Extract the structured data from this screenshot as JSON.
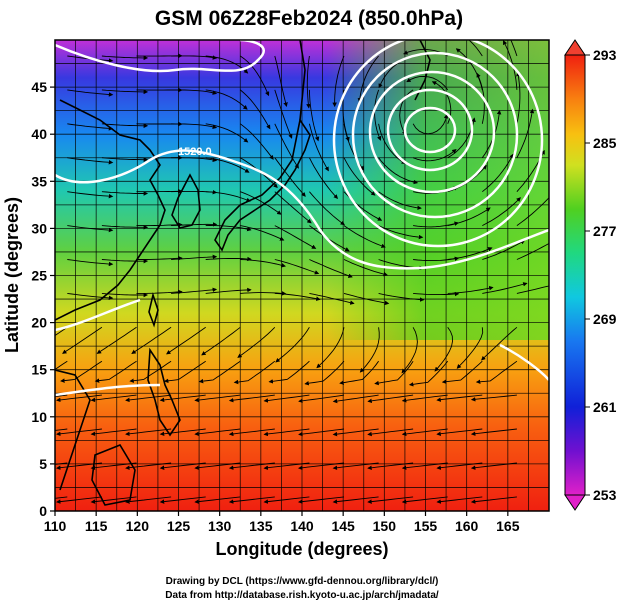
{
  "title": "GSM 06Z28Feb2024 (850.0hPa)",
  "xaxis": {
    "label": "Longitude (degrees)",
    "range": [
      110,
      170
    ],
    "ticks": [
      "110",
      "115",
      "120",
      "125",
      "130",
      "135",
      "140",
      "145",
      "150",
      "155",
      "160",
      "165"
    ],
    "tick_values": [
      110,
      115,
      120,
      125,
      130,
      135,
      140,
      145,
      150,
      155,
      160,
      165
    ]
  },
  "yaxis": {
    "label": "Latitude  (degrees)",
    "range": [
      0,
      50
    ],
    "ticks": [
      "0",
      "5",
      "10",
      "15",
      "20",
      "25",
      "30",
      "35",
      "40",
      "45"
    ],
    "tick_values": [
      0,
      5,
      10,
      15,
      20,
      25,
      30,
      35,
      40,
      45
    ]
  },
  "colorbar": {
    "ticks": [
      "253",
      "261",
      "269",
      "277",
      "285",
      "293"
    ],
    "tick_values": [
      253,
      261,
      269,
      277,
      285,
      293
    ],
    "range": [
      253,
      293
    ],
    "colors": [
      "#e020c8",
      "#7010d0",
      "#1020d8",
      "#1878f0",
      "#10c8e0",
      "#20d880",
      "#50d020",
      "#b8e020",
      "#f0d020",
      "#f8a010",
      "#f86010",
      "#f02010"
    ]
  },
  "map": {
    "grid": true,
    "contour_label": "1520.0",
    "low_center": {
      "lon": 155,
      "lat": 42
    },
    "contour_color": "#ffffff",
    "streamline_color": "#000000",
    "coastline_color": "#000000"
  },
  "credits": {
    "line1": "Drawing by DCL (https://www.gfd-dennou.org/library/dcl/)",
    "line2": "Data from http://database.rish.kyoto-u.ac.jp/arch/jmadata/"
  }
}
